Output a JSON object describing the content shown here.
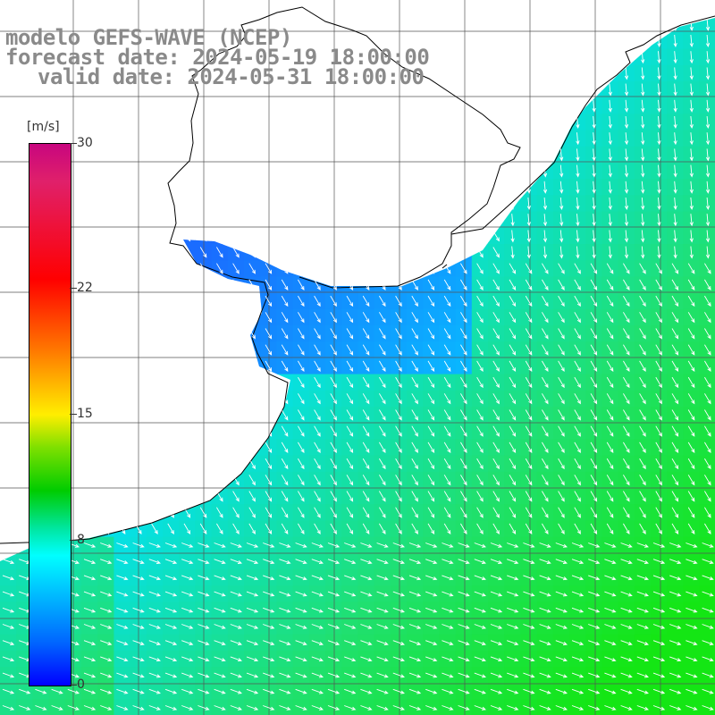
{
  "title": {
    "line1": "modelo GEFS-WAVE (NCEP)",
    "line2": "forecast date: 2024-05-19 18:00:00",
    "line3": "valid date: 2024-05-31 18:00:00"
  },
  "colorbar": {
    "unit": "[m/s]",
    "ticks": [
      "30",
      "22",
      "15",
      "8",
      "0"
    ],
    "tick_values": [
      30,
      22,
      15,
      8,
      0
    ],
    "range": [
      0,
      30
    ]
  },
  "colors": {
    "ocean_low": "#1a73ff",
    "ocean_mid": "#00e8ff",
    "ocean_high": "#19e619",
    "land": "#ffffff",
    "coastline": "#000000",
    "grid": "#555555",
    "arrows": "#ffffff"
  },
  "field": {
    "variable": "wind speed and direction",
    "dominant_direction": "southeast"
  }
}
